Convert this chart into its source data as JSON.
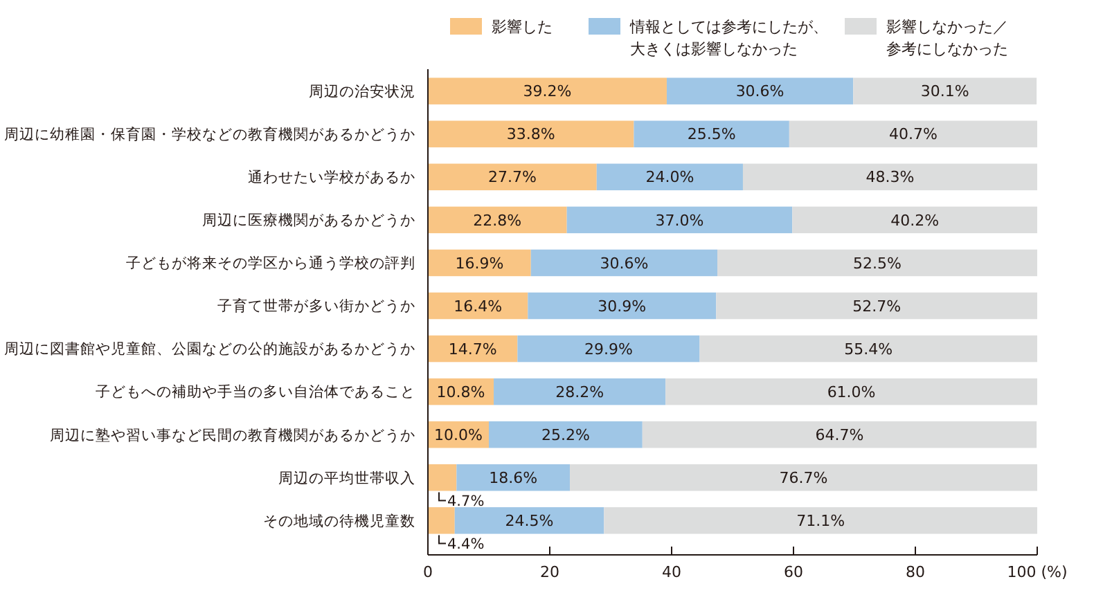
{
  "chart_data": {
    "type": "bar",
    "orientation": "horizontal",
    "stacked": true,
    "legend": "top",
    "grid": false,
    "categories": [
      "周辺の治安状況",
      "周辺に幼稚園・保育園・学校などの教育機関があるかどうか",
      "通わせたい学校があるか",
      "周辺に医療機関があるかどうか",
      "子どもが将来その学区から通う学校の評判",
      "子育て世帯が多い街かどうか",
      "周辺に図書館や児童館、公園などの公的施設があるかどうか",
      "子どもへの補助や手当の多い自治体であること",
      "周辺に塾や習い事など民間の教育機関があるかどうか",
      "周辺の平均世帯収入",
      "その地域の待機児童数"
    ],
    "xlim": [
      0,
      100
    ],
    "xticks": [
      0,
      20,
      40,
      60,
      80,
      {
        "value": 100,
        "label": "100 (%)"
      }
    ],
    "series": [
      {
        "name": "影響した",
        "color": "#f9c584",
        "values": [
          39.2,
          33.8,
          27.7,
          22.8,
          16.9,
          16.4,
          14.7,
          10.8,
          10.0,
          4.7,
          4.4
        ],
        "value_labels": [
          "39.2%",
          "33.8%",
          "27.7%",
          "22.8%",
          "16.9%",
          "16.4%",
          "14.7%",
          "10.8%",
          "10.0%",
          "4.7%",
          "4.4%"
        ]
      },
      {
        "name": "情報としては参考にしたが、大きくは影響しなかった",
        "color": "#9fc6e6",
        "values": [
          30.6,
          25.5,
          24.0,
          37.0,
          30.6,
          30.9,
          29.9,
          28.2,
          25.2,
          18.6,
          24.5
        ],
        "value_labels": [
          "30.6%",
          "25.5%",
          "24.0%",
          "37.0%",
          "30.6%",
          "30.9%",
          "29.9%",
          "28.2%",
          "25.2%",
          "18.6%",
          "24.5%"
        ]
      },
      {
        "name": "影響しなかった／参考にしなかった",
        "color": "#dcdddd",
        "values": [
          30.1,
          40.7,
          48.3,
          40.2,
          52.5,
          52.7,
          55.4,
          61.0,
          64.7,
          76.7,
          71.1
        ],
        "value_labels": [
          "30.1%",
          "40.7%",
          "48.3%",
          "40.2%",
          "52.5%",
          "52.7%",
          "55.4%",
          "61.0%",
          "64.7%",
          "76.7%",
          "71.1%"
        ]
      }
    ]
  }
}
